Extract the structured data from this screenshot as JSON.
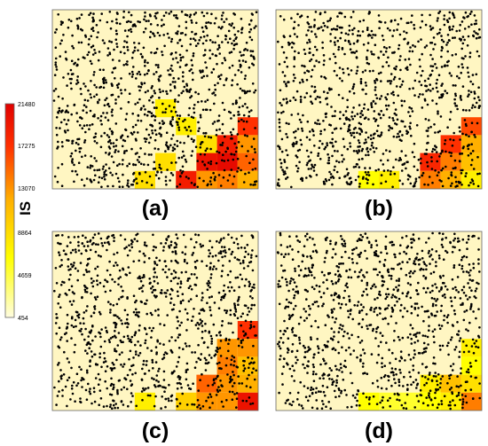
{
  "legend": {
    "title": "IS",
    "ticks": [
      "21480",
      "17275",
      "13070",
      "8864",
      "4659",
      "454"
    ],
    "color_stops": [
      "#fffde0",
      "#ffff00",
      "#ffb000",
      "#ff3000",
      "#e00000"
    ]
  },
  "colors": {
    "background": "#fff6c2",
    "border": "#666666",
    "points": "#000000"
  },
  "panels": [
    {
      "id": "a",
      "label": "(a)",
      "hot_cells": [
        {
          "col": 8,
          "row": 9,
          "level": 0.45
        },
        {
          "col": 6,
          "row": 6,
          "level": 0.3
        },
        {
          "col": 7,
          "row": 7,
          "level": 0.35
        },
        {
          "col": 5,
          "row": 5,
          "level": 0.3
        },
        {
          "col": 8,
          "row": 8,
          "level": 0.4
        },
        {
          "col": 7,
          "row": 8,
          "level": 0.25
        },
        {
          "col": 9,
          "row": 6,
          "level": 0.75
        },
        {
          "col": 8,
          "row": 7,
          "level": 0.85
        },
        {
          "col": 9,
          "row": 7,
          "level": 0.55
        },
        {
          "col": 7,
          "row": 8,
          "level": 0.9
        },
        {
          "col": 8,
          "row": 8,
          "level": 0.95
        },
        {
          "col": 9,
          "row": 8,
          "level": 0.65
        },
        {
          "col": 6,
          "row": 9,
          "level": 0.85
        },
        {
          "col": 7,
          "row": 9,
          "level": 0.55
        },
        {
          "col": 8,
          "row": 9,
          "level": 0.6
        },
        {
          "col": 9,
          "row": 9,
          "level": 0.5
        },
        {
          "col": 4,
          "row": 9,
          "level": 0.35
        },
        {
          "col": 5,
          "row": 8,
          "level": 0.35
        }
      ]
    },
    {
      "id": "b",
      "label": "(b)",
      "hot_cells": [
        {
          "col": 9,
          "row": 6,
          "level": 0.7
        },
        {
          "col": 8,
          "row": 7,
          "level": 0.75
        },
        {
          "col": 9,
          "row": 7,
          "level": 0.5
        },
        {
          "col": 7,
          "row": 8,
          "level": 0.8
        },
        {
          "col": 8,
          "row": 8,
          "level": 0.6
        },
        {
          "col": 9,
          "row": 8,
          "level": 0.45
        },
        {
          "col": 7,
          "row": 9,
          "level": 0.6
        },
        {
          "col": 8,
          "row": 9,
          "level": 0.5
        },
        {
          "col": 9,
          "row": 9,
          "level": 0.3
        },
        {
          "col": 5,
          "row": 9,
          "level": 0.3
        },
        {
          "col": 4,
          "row": 9,
          "level": 0.25
        }
      ]
    },
    {
      "id": "c",
      "label": "(c)",
      "hot_cells": [
        {
          "col": 9,
          "row": 5,
          "level": 0.75
        },
        {
          "col": 8,
          "row": 6,
          "level": 0.55
        },
        {
          "col": 9,
          "row": 6,
          "level": 0.55
        },
        {
          "col": 8,
          "row": 7,
          "level": 0.6
        },
        {
          "col": 9,
          "row": 7,
          "level": 0.45
        },
        {
          "col": 7,
          "row": 8,
          "level": 0.65
        },
        {
          "col": 8,
          "row": 8,
          "level": 0.55
        },
        {
          "col": 9,
          "row": 8,
          "level": 0.5
        },
        {
          "col": 6,
          "row": 9,
          "level": 0.4
        },
        {
          "col": 7,
          "row": 9,
          "level": 0.55
        },
        {
          "col": 8,
          "row": 9,
          "level": 0.55
        },
        {
          "col": 9,
          "row": 9,
          "level": 0.9
        },
        {
          "col": 4,
          "row": 9,
          "level": 0.3
        }
      ]
    },
    {
      "id": "d",
      "label": "(d)",
      "hot_cells": [
        {
          "col": 9,
          "row": 6,
          "level": 0.3
        },
        {
          "col": 9,
          "row": 7,
          "level": 0.25
        },
        {
          "col": 8,
          "row": 8,
          "level": 0.45
        },
        {
          "col": 9,
          "row": 8,
          "level": 0.35
        },
        {
          "col": 7,
          "row": 8,
          "level": 0.3
        },
        {
          "col": 7,
          "row": 9,
          "level": 0.25
        },
        {
          "col": 8,
          "row": 9,
          "level": 0.3
        },
        {
          "col": 9,
          "row": 9,
          "level": 0.6
        },
        {
          "col": 5,
          "row": 9,
          "level": 0.2
        },
        {
          "col": 6,
          "row": 9,
          "level": 0.2
        },
        {
          "col": 4,
          "row": 9,
          "level": 0.25
        }
      ]
    }
  ]
}
